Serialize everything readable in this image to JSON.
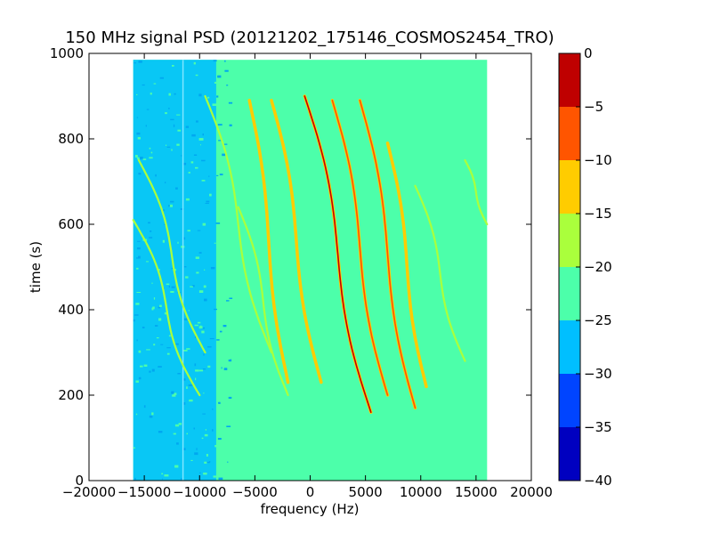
{
  "chart_data": {
    "type": "heatmap",
    "title": "150 MHz signal PSD (20121202_175146_COSMOS2454_TRO)",
    "xlabel": "frequency (Hz)",
    "ylabel": "time (s)",
    "xlim": [
      -20000,
      20000
    ],
    "ylim": [
      0,
      1000
    ],
    "xticks": [
      -20000,
      -15000,
      -10000,
      -5000,
      0,
      5000,
      10000,
      15000,
      20000
    ],
    "xtick_labels": [
      "−20000",
      "−15000",
      "−10000",
      "−5000",
      "0",
      "5000",
      "10000",
      "15000",
      "20000"
    ],
    "yticks": [
      0,
      200,
      400,
      600,
      800,
      1000
    ],
    "ytick_labels": [
      "0",
      "200",
      "400",
      "600",
      "800",
      "1000"
    ],
    "data_extent": {
      "freq_min": -16000,
      "freq_max": 16000,
      "time_min": 0,
      "time_max": 985
    },
    "background_level": -22.5,
    "noise_band": {
      "freq_start": -16000,
      "freq_end": -8500,
      "level": -27.5,
      "center_line_freq": -11500
    },
    "traces": [
      {
        "freq_at_top": -15500,
        "freq_at_bottom": -9500,
        "time_top": 750,
        "time_bottom": 300,
        "level": -17.5
      },
      {
        "freq_at_top": -16000,
        "freq_at_bottom": -10000,
        "time_top": 610,
        "time_bottom": 200,
        "level": -17.5
      },
      {
        "freq_at_top": -9500,
        "freq_at_bottom": -3500,
        "time_top": 900,
        "time_bottom": 300,
        "level": -17.5
      },
      {
        "freq_at_top": -6500,
        "freq_at_bottom": -2000,
        "time_top": 640,
        "time_bottom": 200,
        "level": -17.5
      },
      {
        "freq_at_top": -5500,
        "freq_at_bottom": -2000,
        "time_top": 890,
        "time_bottom": 230,
        "level": -12.5
      },
      {
        "freq_at_top": -3500,
        "freq_at_bottom": 1000,
        "time_top": 890,
        "time_bottom": 230,
        "level": -12.5
      },
      {
        "freq_at_top": -500,
        "freq_at_bottom": 5500,
        "time_top": 900,
        "time_bottom": 160,
        "level": -2.5
      },
      {
        "freq_at_top": 2000,
        "freq_at_bottom": 7000,
        "time_top": 890,
        "time_bottom": 200,
        "level": -7.5
      },
      {
        "freq_at_top": 4500,
        "freq_at_bottom": 9500,
        "time_top": 890,
        "time_bottom": 170,
        "level": -7.5
      },
      {
        "freq_at_top": 7000,
        "freq_at_bottom": 10500,
        "time_top": 790,
        "time_bottom": 220,
        "level": -12.5
      },
      {
        "freq_at_top": 9500,
        "freq_at_bottom": 14000,
        "time_top": 690,
        "time_bottom": 280,
        "level": -17.5
      },
      {
        "freq_at_top": 14000,
        "freq_at_bottom": 16000,
        "time_top": 750,
        "time_bottom": 600,
        "level": -17.5
      }
    ],
    "colorbar": {
      "levels": [
        0,
        -5,
        -10,
        -15,
        -20,
        -25,
        -30,
        -35,
        -40
      ],
      "level_labels": [
        "0",
        "−5",
        "−10",
        "−15",
        "−20",
        "−25",
        "−30",
        "−35",
        "−40"
      ],
      "colors": [
        "#bf0000",
        "#ff5500",
        "#ffcc00",
        "#aaff3c",
        "#4cffaa",
        "#00bfff",
        "#0044ff",
        "#0000c0"
      ]
    }
  }
}
